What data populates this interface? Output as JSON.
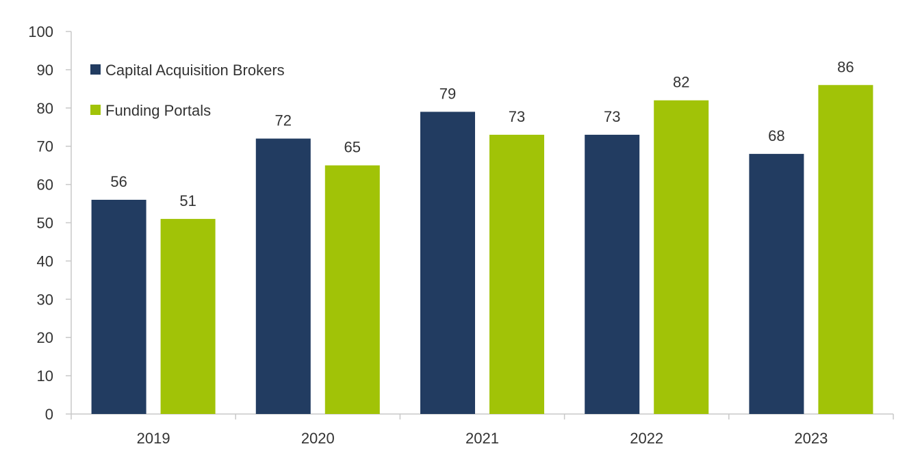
{
  "chart_data": {
    "type": "bar",
    "categories": [
      "2019",
      "2020",
      "2021",
      "2022",
      "2023"
    ],
    "series": [
      {
        "name": "Capital Acquisition Brokers",
        "color": "#223c61",
        "values": [
          56,
          72,
          79,
          73,
          68
        ]
      },
      {
        "name": "Funding Portals",
        "color": "#a1c307",
        "values": [
          51,
          65,
          73,
          82,
          86
        ]
      }
    ],
    "title": "",
    "xlabel": "",
    "ylabel": "",
    "ylim": [
      0,
      100
    ],
    "yticks": [
      0,
      10,
      20,
      30,
      40,
      50,
      60,
      70,
      80,
      90,
      100
    ],
    "grid": false,
    "legend_position": "top-left"
  }
}
